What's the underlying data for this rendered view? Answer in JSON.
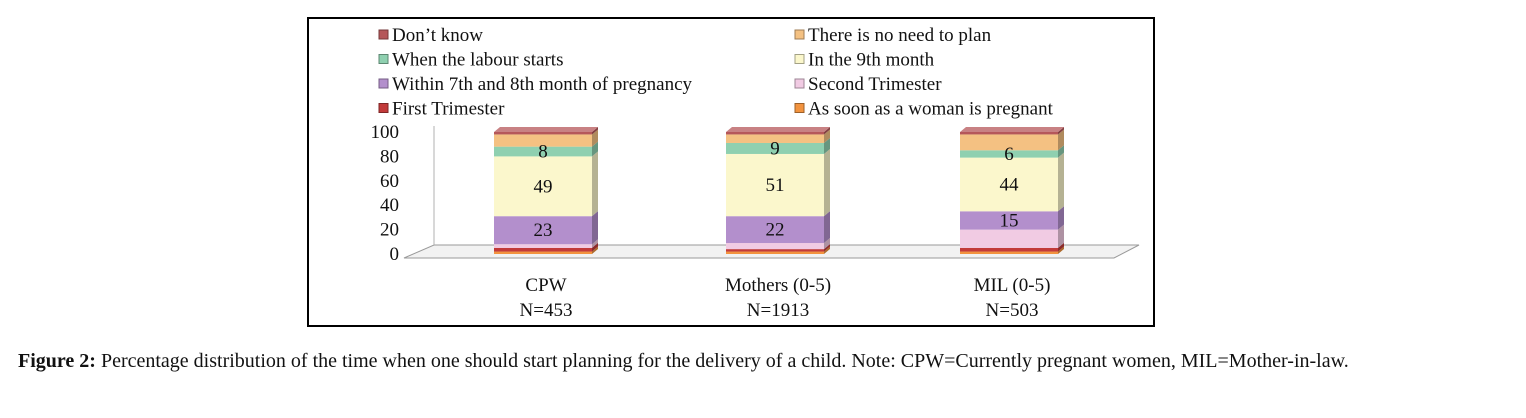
{
  "colors": {
    "dont_know": "#b5575a",
    "no_need_to_plan": "#f4c182",
    "when_labour_starts": "#8fd0b0",
    "ninth_month": "#fbf7cc",
    "seventh_eighth_month": "#b38fcc",
    "second_trimester": "#f1cbe3",
    "first_trimester": "#c23a3a",
    "as_soon_as_pregnant": "#f2933f",
    "floor": "#f2f2f2"
  },
  "chart_data": {
    "type": "bar",
    "stacked": true,
    "three_d": true,
    "categories": [
      {
        "name": "CPW",
        "n": "N=453"
      },
      {
        "name": "Mothers (0-5)",
        "n": "N=1913"
      },
      {
        "name": "MIL (0-5)",
        "n": "N=503"
      }
    ],
    "series": [
      {
        "key": "as_soon_as_pregnant",
        "name": "As soon as a woman is pregnant",
        "values": [
          2,
          2,
          2
        ],
        "labels": [
          "",
          "",
          ""
        ]
      },
      {
        "key": "first_trimester",
        "name": "First Trimester",
        "values": [
          3,
          2,
          3
        ],
        "labels": [
          "",
          "",
          ""
        ]
      },
      {
        "key": "second_trimester",
        "name": "Second Trimester",
        "values": [
          3,
          5,
          15
        ],
        "labels": [
          "",
          "",
          ""
        ]
      },
      {
        "key": "seventh_eighth_month",
        "name": "Within 7th and 8th month of pregnancy",
        "values": [
          23,
          22,
          15
        ],
        "labels": [
          "23",
          "22",
          "15"
        ]
      },
      {
        "key": "ninth_month",
        "name": "In the 9th month",
        "values": [
          49,
          51,
          44
        ],
        "labels": [
          "49",
          "51",
          "44"
        ]
      },
      {
        "key": "when_labour_starts",
        "name": "When the labour starts",
        "values": [
          8,
          9,
          6
        ],
        "labels": [
          "8",
          "9",
          "6"
        ]
      },
      {
        "key": "no_need_to_plan",
        "name": "There is no need to plan",
        "values": [
          10,
          7,
          13
        ],
        "labels": [
          "",
          "",
          ""
        ]
      },
      {
        "key": "dont_know",
        "name": "Don’t know",
        "values": [
          2,
          2,
          2
        ],
        "labels": [
          "",
          "",
          ""
        ]
      }
    ],
    "legend_order": [
      "dont_know",
      "no_need_to_plan",
      "when_labour_starts",
      "ninth_month",
      "seventh_eighth_month",
      "second_trimester",
      "first_trimester",
      "as_soon_as_pregnant"
    ],
    "legend_position": "top",
    "y_ticks": [
      "0",
      "20",
      "40",
      "60",
      "80",
      "100"
    ],
    "ylim": [
      0,
      100
    ],
    "grid": false
  },
  "caption": {
    "label": "Figure 2:",
    "text": " Percentage distribution of the time when one should start planning for the delivery of a child. Note: CPW=Currently pregnant women, MIL=Mother-in-law."
  }
}
